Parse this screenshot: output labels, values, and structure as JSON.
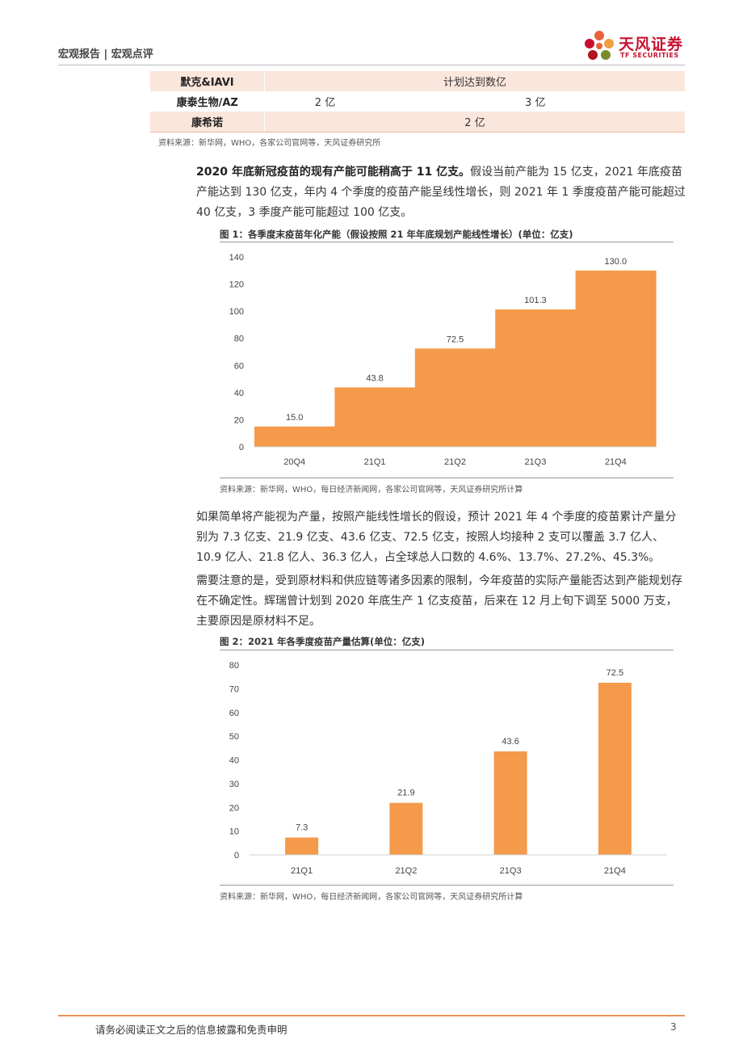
{
  "header": {
    "section": "宏观报告 | 宏观点评",
    "logo_name": "天风证券",
    "logo_sub": "TF SECURITIES"
  },
  "table": {
    "rows": [
      {
        "company": "默克&IAVI",
        "col2": "",
        "col3": "计划达到数亿",
        "merged": true,
        "shaded": true
      },
      {
        "company": "康泰生物/AZ",
        "col2": "2 亿",
        "col3": "3 亿",
        "merged": false,
        "shaded": false
      },
      {
        "company": "康希诺",
        "col2": "",
        "col3": "2 亿",
        "merged": true,
        "shaded": true
      }
    ],
    "source": "资料来源：新华网，WHO，各家公司官网等，天风证券研究所"
  },
  "paragraph1": {
    "bold": "2020 年底新冠疫苗的现有产能可能稍高于 11 亿支。",
    "rest": "假设当前产能为 15 亿支，2021 年底疫苗产能达到 130 亿支，年内 4 个季度的疫苗产能呈线性增长，则 2021 年 1 季度疫苗产能可能超过 40 亿支，3 季度产能可能超过 100 亿支。"
  },
  "figure1": {
    "title": "图 1：各季度末疫苗年化产能（假设按照 21 年年底规划产能线性增长）(单位：亿支)",
    "source": "资料来源：新华网，WHO，每日经济新闻网，各家公司官网等，天风证券研究所计算"
  },
  "paragraph2": "如果简单将产能视为产量，按照产能线性增长的假设，预计 2021 年 4 个季度的疫苗累计产量分别为 7.3 亿支、21.9 亿支、43.6 亿支、72.5 亿支，按照人均接种 2 支可以覆盖 3.7 亿人、10.9 亿人、21.8 亿人、36.3 亿人，占全球总人口数的 4.6%、13.7%、27.2%、45.3%。",
  "paragraph3": "需要注意的是，受到原材料和供应链等诸多因素的限制，今年疫苗的实际产量能否达到产能规划存在不确定性。辉瑞曾计划到 2020 年底生产 1 亿支疫苗，后来在 12 月上旬下调至 5000 万支，主要原因是原材料不足。",
  "figure2": {
    "title": "图 2：2021 年各季度疫苗产量估算(单位：亿支)",
    "source": "资料来源：新华网，WHO，每日经济新闻网，各家公司官网等，天风证券研究所计算"
  },
  "footer": {
    "disclaimer": "请务必阅读正文之后的信息披露和免责申明",
    "page": "3"
  },
  "colors": {
    "bar": "#f59a4a",
    "logo_red": "#c8102e",
    "table_shade": "#fbe6dc"
  },
  "chart_data": [
    {
      "type": "area",
      "title": "",
      "categories": [
        "20Q4",
        "21Q1",
        "21Q2",
        "21Q3",
        "21Q4"
      ],
      "values": [
        15.0,
        43.8,
        72.5,
        101.3,
        130.0
      ],
      "data_labels": [
        "15.0",
        "43.8",
        "72.5",
        "101.3",
        "130.0"
      ],
      "yticks": [
        0,
        20,
        40,
        60,
        80,
        100,
        120,
        140
      ],
      "ylim": [
        0,
        140
      ],
      "grid": false,
      "legend": "none"
    },
    {
      "type": "bar",
      "title": "",
      "categories": [
        "21Q1",
        "21Q2",
        "21Q3",
        "21Q4"
      ],
      "values": [
        7.3,
        21.9,
        43.6,
        72.5
      ],
      "data_labels": [
        "7.3",
        "21.9",
        "43.6",
        "72.5"
      ],
      "yticks": [
        0,
        10,
        20,
        30,
        40,
        50,
        60,
        70,
        80
      ],
      "ylim": [
        0,
        80
      ],
      "grid": false,
      "legend": "none"
    }
  ]
}
